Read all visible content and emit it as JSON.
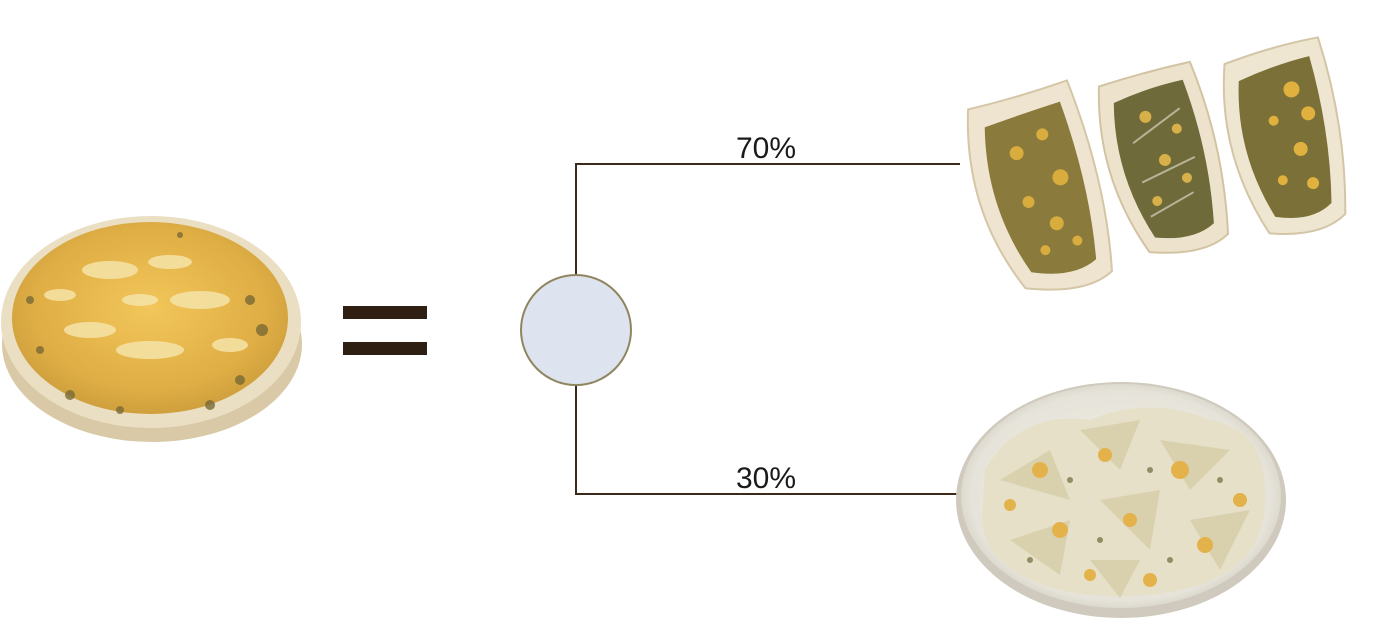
{
  "diagram": {
    "branches": [
      {
        "label": "70%",
        "outcome": "tacos"
      },
      {
        "label": "30%",
        "outcome": "salad"
      }
    ],
    "colors": {
      "line": "#3b2a1a",
      "node_fill": "#dde3ef",
      "node_stroke": "#8f8660",
      "equals": "#2e1f12",
      "cheese": "#e3b64a",
      "crust": "#e9dcc0",
      "greens": "#6f6a3a",
      "plate": "#ecebe6"
    },
    "images": {
      "left": "cheese-pizza-icon",
      "top_right": "tacos-icon",
      "bottom_right": "salad-bowl-icon"
    }
  }
}
